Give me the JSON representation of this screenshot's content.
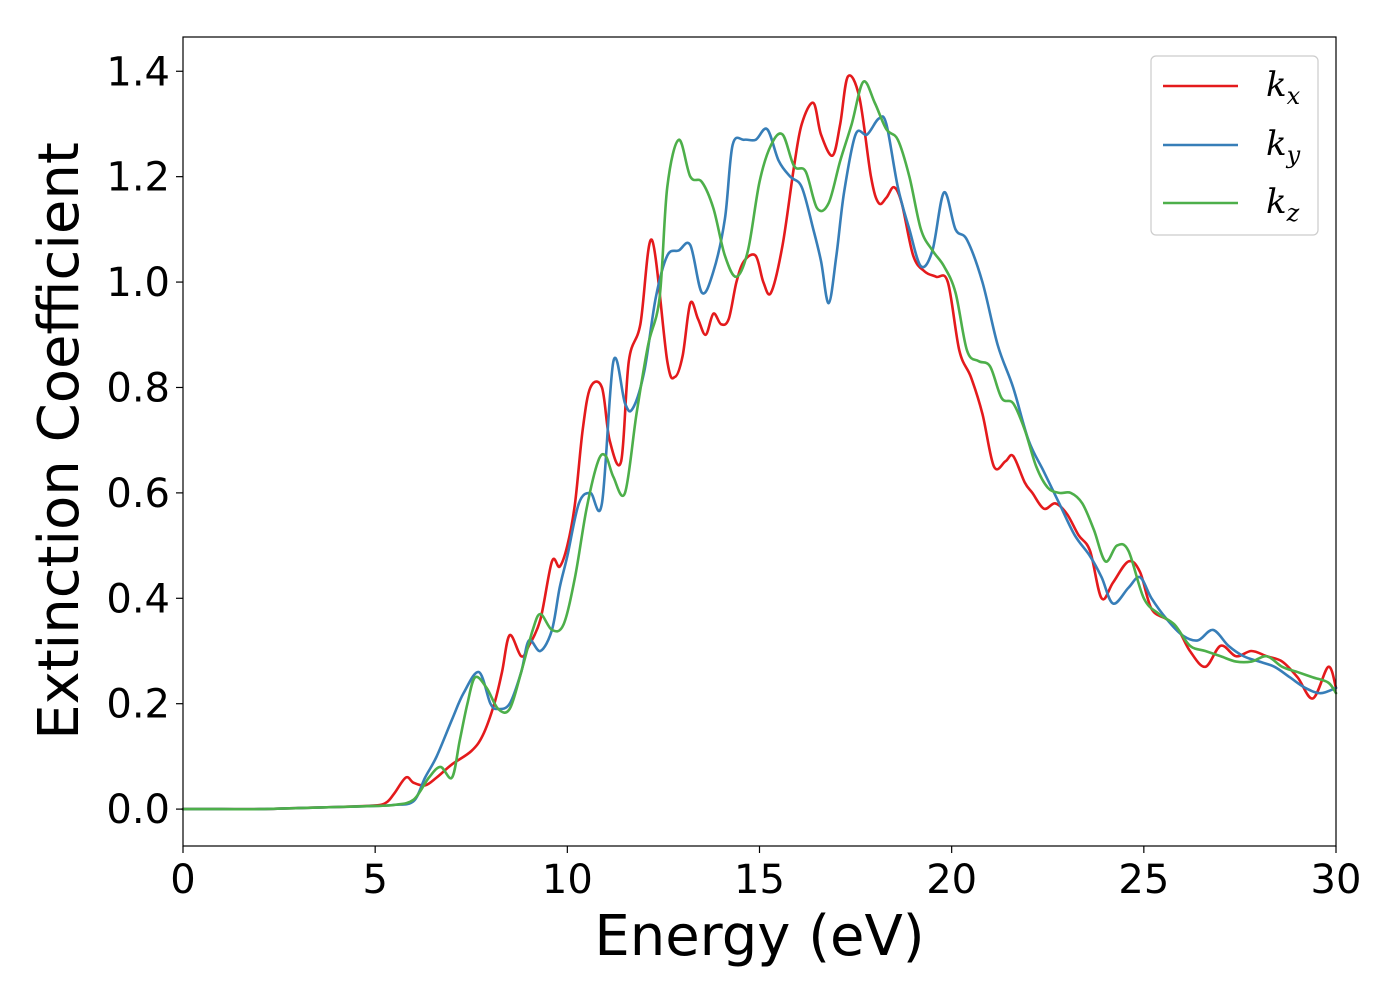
{
  "chart_data": {
    "type": "line",
    "title": "",
    "xlabel": "Energy (eV)",
    "ylabel": "Extinction Coefficient",
    "xlim": [
      0,
      30
    ],
    "ylim": [
      -0.07,
      1.465
    ],
    "xticks": [
      0,
      5,
      10,
      15,
      20,
      25,
      30
    ],
    "yticks": [
      0.0,
      0.2,
      0.4,
      0.6,
      0.8,
      1.0,
      1.2,
      1.4
    ],
    "ytick_labels": [
      "0.0",
      "0.2",
      "0.4",
      "0.6",
      "0.8",
      "1.0",
      "1.2",
      "1.4"
    ],
    "grid": false,
    "legend_position": "top-right",
    "series": [
      {
        "name": "k_x",
        "color": "#e41a1c",
        "x": [
          0,
          1,
          2,
          3,
          4,
          5,
          5.3,
          5.5,
          5.8,
          6.0,
          6.3,
          6.6,
          7.0,
          7.5,
          7.8,
          8.1,
          8.3,
          8.5,
          8.8,
          9.0,
          9.3,
          9.6,
          9.8,
          10.0,
          10.2,
          10.4,
          10.6,
          10.9,
          11.1,
          11.4,
          11.6,
          11.9,
          12.2,
          12.6,
          12.8,
          13.0,
          13.2,
          13.4,
          13.6,
          13.8,
          14.0,
          14.2,
          14.4,
          14.6,
          14.9,
          15.1,
          15.3,
          15.6,
          15.9,
          16.1,
          16.4,
          16.6,
          16.9,
          17.1,
          17.3,
          17.6,
          17.9,
          18.1,
          18.3,
          18.5,
          18.7,
          19.0,
          19.3,
          19.6,
          19.9,
          20.2,
          20.5,
          20.8,
          21.1,
          21.4,
          21.6,
          21.9,
          22.1,
          22.4,
          22.7,
          23.0,
          23.3,
          23.6,
          23.9,
          24.2,
          24.6,
          24.9,
          25.2,
          25.6,
          25.9,
          26.2,
          26.6,
          27.0,
          27.4,
          27.8,
          28.2,
          28.6,
          29.0,
          29.4,
          29.8,
          30.0
        ],
        "y": [
          0.0,
          0.0,
          0.0,
          0.002,
          0.004,
          0.007,
          0.013,
          0.03,
          0.06,
          0.05,
          0.045,
          0.06,
          0.085,
          0.11,
          0.14,
          0.2,
          0.26,
          0.33,
          0.29,
          0.31,
          0.36,
          0.47,
          0.46,
          0.5,
          0.58,
          0.72,
          0.8,
          0.8,
          0.7,
          0.66,
          0.85,
          0.92,
          1.08,
          0.85,
          0.82,
          0.86,
          0.96,
          0.93,
          0.9,
          0.94,
          0.92,
          0.93,
          1.0,
          1.04,
          1.05,
          1.0,
          0.98,
          1.07,
          1.22,
          1.3,
          1.34,
          1.28,
          1.24,
          1.3,
          1.39,
          1.35,
          1.2,
          1.15,
          1.16,
          1.18,
          1.15,
          1.05,
          1.02,
          1.01,
          1.0,
          0.87,
          0.82,
          0.75,
          0.65,
          0.66,
          0.67,
          0.62,
          0.6,
          0.57,
          0.58,
          0.56,
          0.52,
          0.49,
          0.4,
          0.43,
          0.47,
          0.45,
          0.38,
          0.36,
          0.34,
          0.3,
          0.27,
          0.31,
          0.29,
          0.3,
          0.29,
          0.28,
          0.25,
          0.21,
          0.27,
          0.23
        ]
      },
      {
        "name": "k_y",
        "color": "#377eb8",
        "x": [
          0,
          1,
          2,
          3,
          4,
          5,
          5.5,
          6.0,
          6.3,
          6.6,
          7.0,
          7.3,
          7.7,
          8.0,
          8.2,
          8.5,
          8.8,
          9.0,
          9.3,
          9.6,
          9.8,
          10.0,
          10.3,
          10.6,
          10.9,
          11.2,
          11.5,
          11.7,
          12.0,
          12.3,
          12.6,
          12.9,
          13.2,
          13.5,
          13.8,
          14.1,
          14.3,
          14.6,
          14.9,
          15.2,
          15.5,
          15.8,
          16.1,
          16.4,
          16.6,
          16.8,
          17.0,
          17.2,
          17.5,
          17.8,
          18.1,
          18.3,
          18.6,
          18.9,
          19.2,
          19.5,
          19.8,
          20.1,
          20.4,
          20.8,
          21.2,
          21.6,
          22.0,
          22.4,
          22.8,
          23.2,
          23.6,
          23.9,
          24.2,
          24.6,
          24.9,
          25.2,
          25.6,
          26.0,
          26.4,
          26.8,
          27.2,
          27.6,
          28.0,
          28.4,
          28.8,
          29.2,
          29.6,
          30.0
        ],
        "y": [
          0.0,
          0.0,
          0.0,
          0.002,
          0.004,
          0.006,
          0.008,
          0.015,
          0.06,
          0.1,
          0.17,
          0.22,
          0.26,
          0.2,
          0.19,
          0.2,
          0.26,
          0.32,
          0.3,
          0.34,
          0.42,
          0.48,
          0.58,
          0.6,
          0.58,
          0.85,
          0.77,
          0.76,
          0.83,
          0.97,
          1.05,
          1.06,
          1.07,
          0.98,
          1.02,
          1.12,
          1.26,
          1.27,
          1.27,
          1.29,
          1.23,
          1.2,
          1.18,
          1.1,
          1.04,
          0.96,
          1.05,
          1.17,
          1.28,
          1.28,
          1.31,
          1.3,
          1.18,
          1.1,
          1.03,
          1.06,
          1.17,
          1.1,
          1.08,
          1.0,
          0.88,
          0.8,
          0.7,
          0.64,
          0.58,
          0.52,
          0.48,
          0.44,
          0.39,
          0.42,
          0.44,
          0.4,
          0.36,
          0.33,
          0.32,
          0.34,
          0.31,
          0.29,
          0.28,
          0.27,
          0.25,
          0.23,
          0.22,
          0.23
        ]
      },
      {
        "name": "k_z",
        "color": "#4daf4a",
        "x": [
          0,
          1,
          2,
          3,
          4,
          5,
          5.5,
          6.0,
          6.4,
          6.7,
          7.0,
          7.2,
          7.4,
          7.6,
          7.9,
          8.2,
          8.5,
          8.8,
          9.1,
          9.3,
          9.6,
          9.9,
          10.2,
          10.5,
          10.8,
          11.0,
          11.2,
          11.5,
          11.8,
          12.1,
          12.4,
          12.6,
          12.9,
          13.2,
          13.5,
          13.8,
          14.1,
          14.4,
          14.7,
          15.0,
          15.3,
          15.6,
          15.9,
          16.2,
          16.5,
          16.8,
          17.1,
          17.4,
          17.7,
          18.0,
          18.3,
          18.6,
          18.9,
          19.2,
          19.5,
          19.8,
          20.1,
          20.4,
          20.7,
          21.0,
          21.3,
          21.6,
          21.9,
          22.2,
          22.5,
          22.8,
          23.1,
          23.4,
          23.7,
          24.0,
          24.3,
          24.6,
          25.0,
          25.4,
          25.8,
          26.2,
          26.6,
          27.0,
          27.4,
          27.8,
          28.2,
          28.6,
          29.0,
          29.4,
          29.8,
          30.0
        ],
        "y": [
          0.0,
          0.0,
          0.0,
          0.002,
          0.004,
          0.006,
          0.008,
          0.018,
          0.06,
          0.08,
          0.06,
          0.13,
          0.2,
          0.25,
          0.23,
          0.19,
          0.19,
          0.26,
          0.34,
          0.37,
          0.34,
          0.35,
          0.44,
          0.57,
          0.66,
          0.67,
          0.63,
          0.6,
          0.75,
          0.88,
          0.97,
          1.18,
          1.27,
          1.2,
          1.19,
          1.14,
          1.05,
          1.01,
          1.06,
          1.19,
          1.26,
          1.28,
          1.22,
          1.21,
          1.14,
          1.15,
          1.23,
          1.3,
          1.38,
          1.34,
          1.29,
          1.27,
          1.2,
          1.1,
          1.06,
          1.03,
          0.98,
          0.87,
          0.85,
          0.84,
          0.78,
          0.77,
          0.72,
          0.65,
          0.61,
          0.6,
          0.6,
          0.58,
          0.53,
          0.47,
          0.5,
          0.49,
          0.4,
          0.37,
          0.35,
          0.31,
          0.3,
          0.29,
          0.28,
          0.28,
          0.29,
          0.27,
          0.26,
          0.25,
          0.24,
          0.22
        ]
      }
    ]
  }
}
